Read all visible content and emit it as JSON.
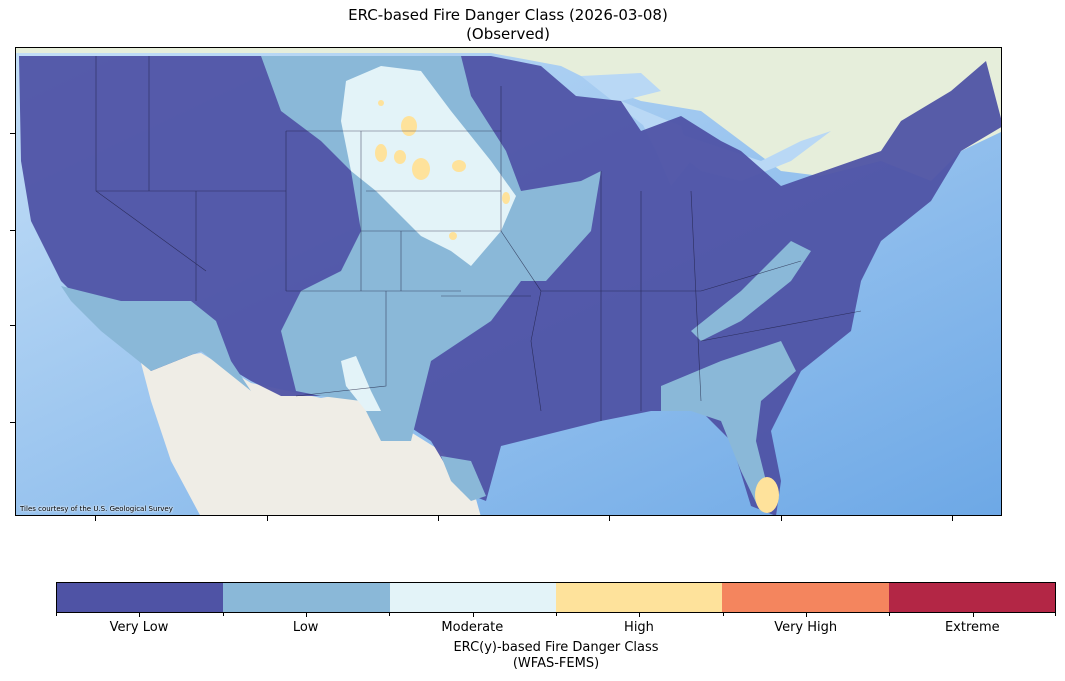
{
  "title": {
    "line1": "ERC-based Fire Danger Class (2026-03-08)",
    "line2": "(Observed)"
  },
  "map": {
    "attribution": "Tiles courtesy of the U.S. Geological Survey",
    "basemap_colors": {
      "ocean": "#a9cdf2",
      "canada": "#e6eedb",
      "mexico": "#efede6"
    }
  },
  "colorbar": {
    "title_line1": "ERC(y)-based Fire Danger Class",
    "title_line2": "(WFAS-FEMS)",
    "classes": [
      {
        "label": "Very Low",
        "color": "#4f53a5"
      },
      {
        "label": "Low",
        "color": "#8ab8d8"
      },
      {
        "label": "Moderate",
        "color": "#e3f3f8"
      },
      {
        "label": "High",
        "color": "#fee29b"
      },
      {
        "label": "Very High",
        "color": "#f4855e"
      },
      {
        "label": "Extreme",
        "color": "#b32645"
      }
    ]
  }
}
